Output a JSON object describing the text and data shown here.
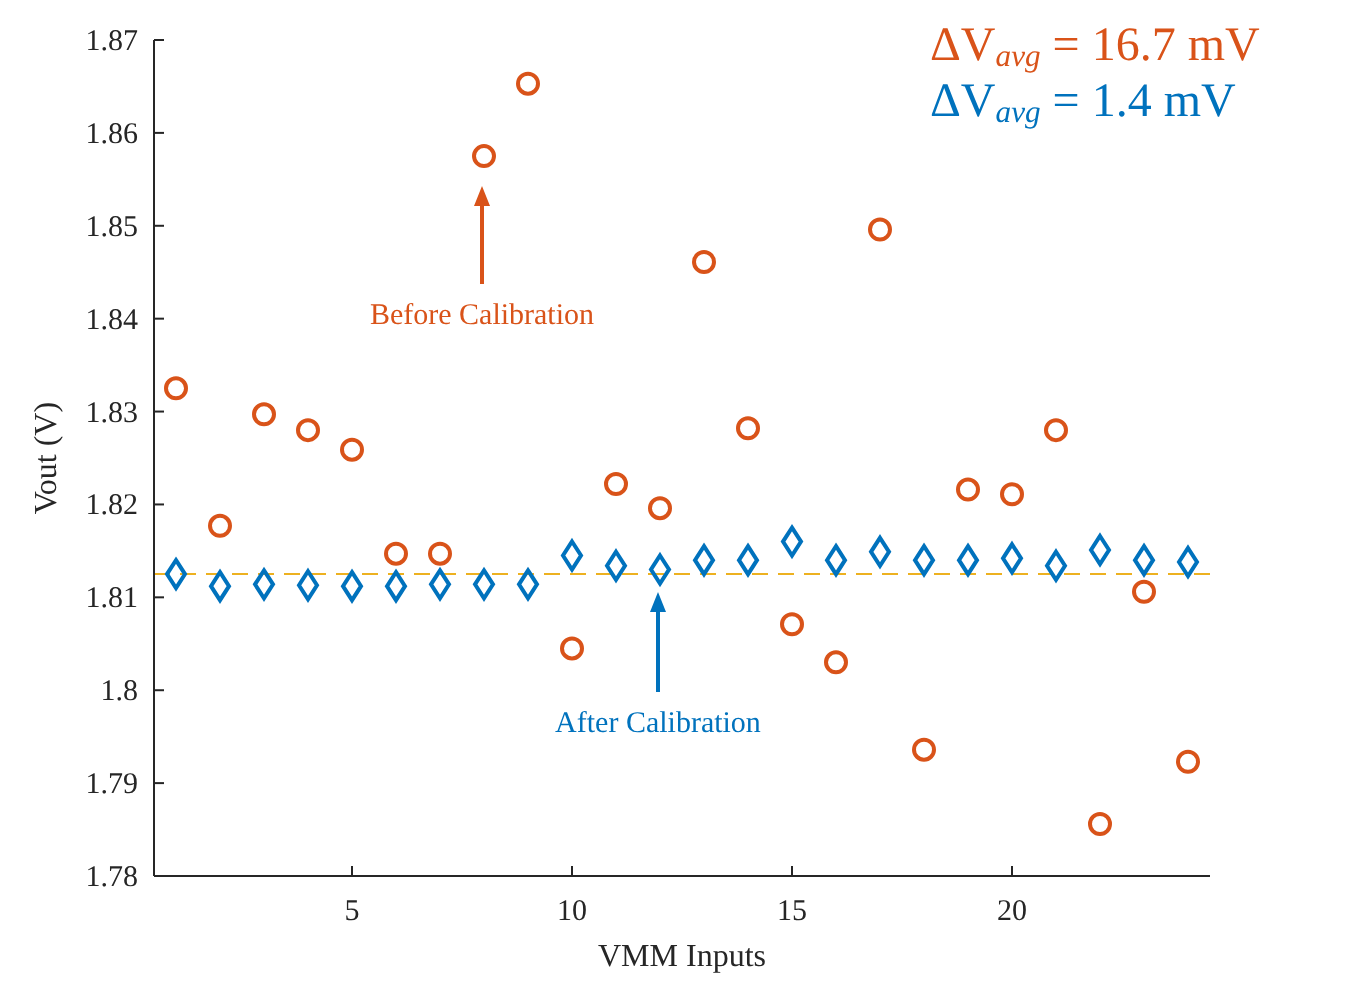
{
  "chart_data": {
    "type": "scatter",
    "xlabel": "VMM Inputs",
    "ylabel": "Vout (V)",
    "x": [
      1,
      2,
      3,
      4,
      5,
      6,
      7,
      8,
      9,
      10,
      11,
      12,
      13,
      14,
      15,
      16,
      17,
      18,
      19,
      20,
      21,
      22,
      23,
      24
    ],
    "series": [
      {
        "color": "#d95319",
        "marker": "circle",
        "values": [
          1.8325,
          1.8177,
          1.8297,
          1.828,
          1.8259,
          1.8147,
          1.8147,
          1.8575,
          1.8653,
          1.8045,
          1.8222,
          1.8196,
          1.8461,
          1.8282,
          1.8071,
          1.803,
          1.8496,
          1.7936,
          1.8216,
          1.8211,
          1.828,
          1.7856,
          1.8106,
          1.7923
        ]
      },
      {
        "color": "#0072bd",
        "marker": "diamond",
        "values": [
          1.8125,
          1.8112,
          1.8114,
          1.8113,
          1.8112,
          1.8112,
          1.8114,
          1.8114,
          1.8114,
          1.8145,
          1.8134,
          1.813,
          1.814,
          1.814,
          1.816,
          1.814,
          1.8149,
          1.814,
          1.814,
          1.8142,
          1.8134,
          1.8151,
          1.814,
          1.8138
        ]
      }
    ],
    "xlim": [
      0.5,
      24.5
    ],
    "xticks": [
      5,
      10,
      15,
      20
    ],
    "ylim": [
      1.78,
      1.87
    ],
    "yticks": [
      1.78,
      1.79,
      1.8,
      1.81,
      1.82,
      1.83,
      1.84,
      1.85,
      1.86,
      1.87
    ],
    "ref_lines": [
      {
        "axis": "y",
        "value": 1.8125,
        "color": "#edb120",
        "line_style": "dashed"
      }
    ],
    "annotations": [
      "Before Calibration",
      "After Calibration",
      "ΔV$_{avg}$ = 16.7 mV",
      "ΔV$_{avg}$ = 1.4 mV"
    ],
    "grid": false
  }
}
